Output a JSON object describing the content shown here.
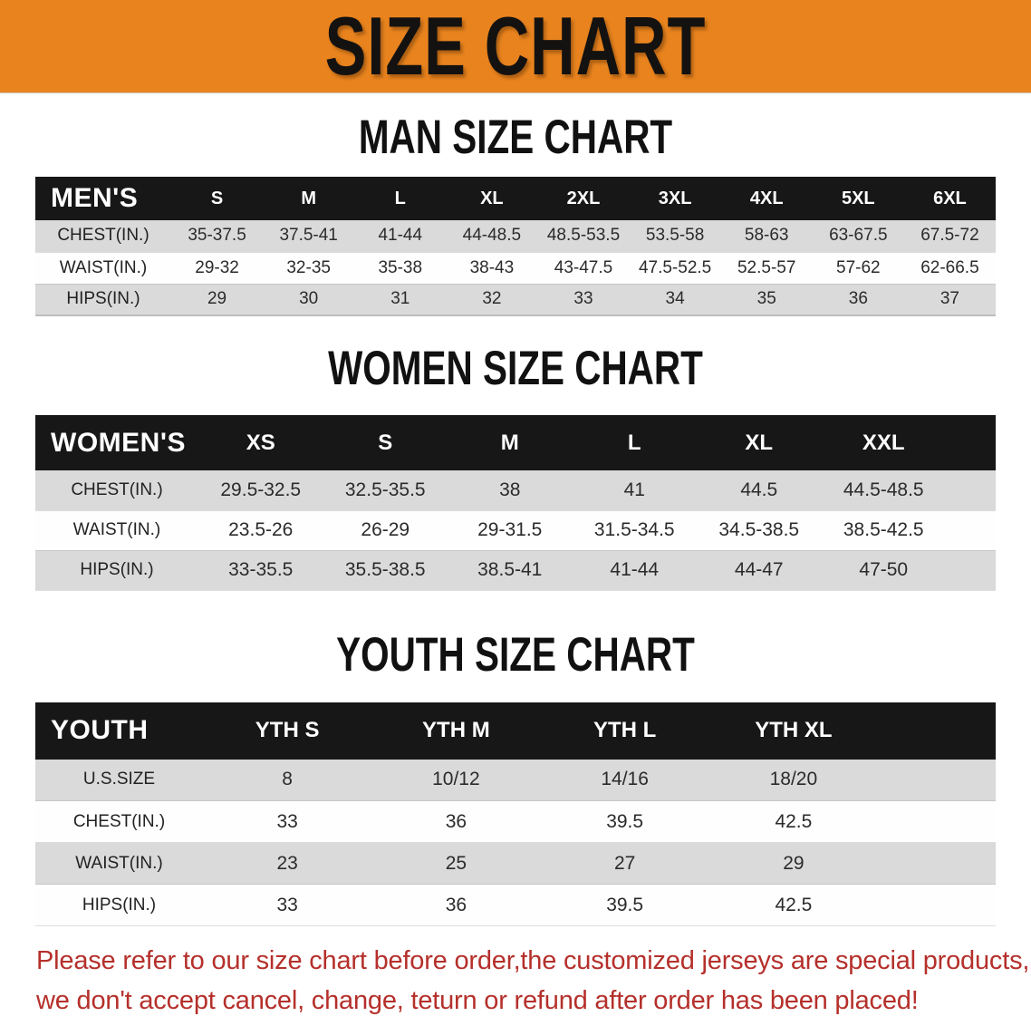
{
  "banner": {
    "title": "SIZE CHART"
  },
  "colors": {
    "banner_bg": "#E8831E",
    "header_bar_bg": "#171717",
    "header_bar_text": "#FFFFFF",
    "row_stripe": "#DADADA",
    "notice_text": "#B5302B"
  },
  "sections": [
    {
      "heading": "MAN SIZE CHART",
      "table": {
        "header": [
          "MEN'S",
          "S",
          "M",
          "L",
          "XL",
          "2XL",
          "3XL",
          "4XL",
          "5XL",
          "6XL"
        ],
        "rows": [
          {
            "label": "CHEST(IN.)",
            "values": [
              "35-37.5",
              "37.5-41",
              "41-44",
              "44-48.5",
              "48.5-53.5",
              "53.5-58",
              "58-63",
              "63-67.5",
              "67.5-72"
            ]
          },
          {
            "label": "WAIST(IN.)",
            "values": [
              "29-32",
              "32-35",
              "35-38",
              "38-43",
              "43-47.5",
              "47.5-52.5",
              "52.5-57",
              "57-62",
              "62-66.5"
            ]
          },
          {
            "label": "HIPS(IN.)",
            "values": [
              "29",
              "30",
              "31",
              "32",
              "33",
              "34",
              "35",
              "36",
              "37"
            ]
          }
        ]
      }
    },
    {
      "heading": "WOMEN SIZE CHART",
      "table": {
        "header": [
          "WOMEN'S",
          "XS",
          "S",
          "M",
          "L",
          "XL",
          "XXL"
        ],
        "rows": [
          {
            "label": "CHEST(IN.)",
            "values": [
              "29.5-32.5",
              "32.5-35.5",
              "38",
              "41",
              "44.5",
              "44.5-48.5"
            ]
          },
          {
            "label": "WAIST(IN.)",
            "values": [
              "23.5-26",
              "26-29",
              "29-31.5",
              "31.5-34.5",
              "34.5-38.5",
              "38.5-42.5"
            ]
          },
          {
            "label": "HIPS(IN.)",
            "values": [
              "33-35.5",
              "35.5-38.5",
              "38.5-41",
              "41-44",
              "44-47",
              "47-50"
            ]
          }
        ]
      }
    },
    {
      "heading": "YOUTH SIZE CHART",
      "table": {
        "header": [
          "YOUTH",
          "YTH S",
          "YTH M",
          "YTH L",
          "YTH XL"
        ],
        "rows": [
          {
            "label": "U.S.SIZE",
            "values": [
              "8",
              "10/12",
              "14/16",
              "18/20"
            ]
          },
          {
            "label": "CHEST(IN.)",
            "values": [
              "33",
              "36",
              "39.5",
              "42.5"
            ]
          },
          {
            "label": "WAIST(IN.)",
            "values": [
              "23",
              "25",
              "27",
              "29"
            ]
          },
          {
            "label": "HIPS(IN.)",
            "values": [
              "33",
              "36",
              "39.5",
              "42.5"
            ]
          }
        ]
      }
    }
  ],
  "footer": {
    "line1": "Please refer to our size chart before order,the customized jerseys are special products,",
    "line2": "we don't accept cancel, change, teturn or refund after order has been placed!"
  }
}
